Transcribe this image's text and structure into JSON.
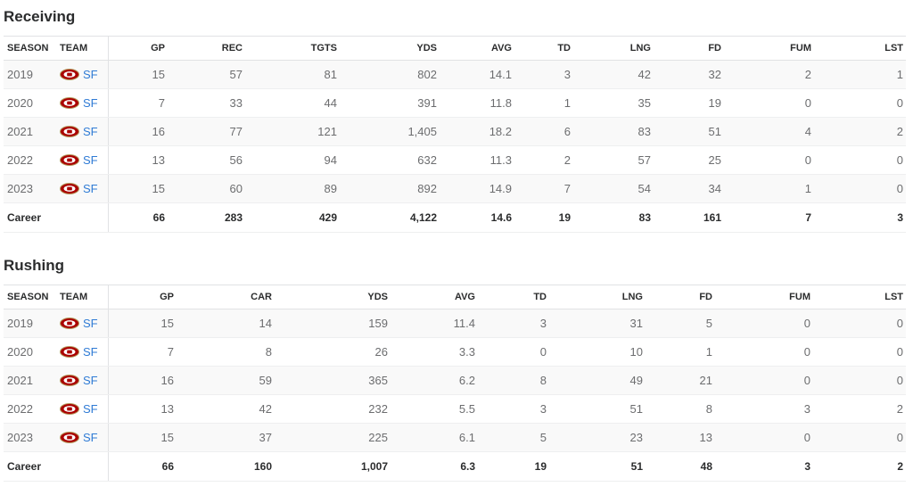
{
  "receiving": {
    "title": "Receiving",
    "headers": [
      "SEASON",
      "TEAM",
      "GP",
      "REC",
      "TGTS",
      "YDS",
      "AVG",
      "TD",
      "LNG",
      "FD",
      "FUM",
      "LST"
    ],
    "rows": [
      [
        "2019",
        "SF",
        "15",
        "57",
        "81",
        "802",
        "14.1",
        "3",
        "42",
        "32",
        "2",
        "1"
      ],
      [
        "2020",
        "SF",
        "7",
        "33",
        "44",
        "391",
        "11.8",
        "1",
        "35",
        "19",
        "0",
        "0"
      ],
      [
        "2021",
        "SF",
        "16",
        "77",
        "121",
        "1,405",
        "18.2",
        "6",
        "83",
        "51",
        "4",
        "2"
      ],
      [
        "2022",
        "SF",
        "13",
        "56",
        "94",
        "632",
        "11.3",
        "2",
        "57",
        "25",
        "0",
        "0"
      ],
      [
        "2023",
        "SF",
        "15",
        "60",
        "89",
        "892",
        "14.9",
        "7",
        "54",
        "34",
        "1",
        "0"
      ]
    ],
    "career": [
      "Career",
      "",
      "66",
      "283",
      "429",
      "4,122",
      "14.6",
      "19",
      "83",
      "161",
      "7",
      "3"
    ]
  },
  "rushing": {
    "title": "Rushing",
    "headers": [
      "SEASON",
      "TEAM",
      "GP",
      "CAR",
      "YDS",
      "AVG",
      "TD",
      "LNG",
      "FD",
      "FUM",
      "LST"
    ],
    "rows": [
      [
        "2019",
        "SF",
        "15",
        "14",
        "159",
        "11.4",
        "3",
        "31",
        "5",
        "0",
        "0"
      ],
      [
        "2020",
        "SF",
        "7",
        "8",
        "26",
        "3.3",
        "0",
        "10",
        "1",
        "0",
        "0"
      ],
      [
        "2021",
        "SF",
        "16",
        "59",
        "365",
        "6.2",
        "8",
        "49",
        "21",
        "0",
        "0"
      ],
      [
        "2022",
        "SF",
        "13",
        "42",
        "232",
        "5.5",
        "3",
        "51",
        "8",
        "3",
        "2"
      ],
      [
        "2023",
        "SF",
        "15",
        "37",
        "225",
        "6.1",
        "5",
        "23",
        "13",
        "0",
        "0"
      ]
    ],
    "career": [
      "Career",
      "",
      "66",
      "160",
      "1,007",
      "6.3",
      "19",
      "51",
      "48",
      "3",
      "2"
    ]
  },
  "team_logo_icon": "49ers-logo-icon",
  "colors": {
    "team_link": "#2f7bd5",
    "logo_red": "#aa0000",
    "logo_gold": "#b3995d"
  }
}
